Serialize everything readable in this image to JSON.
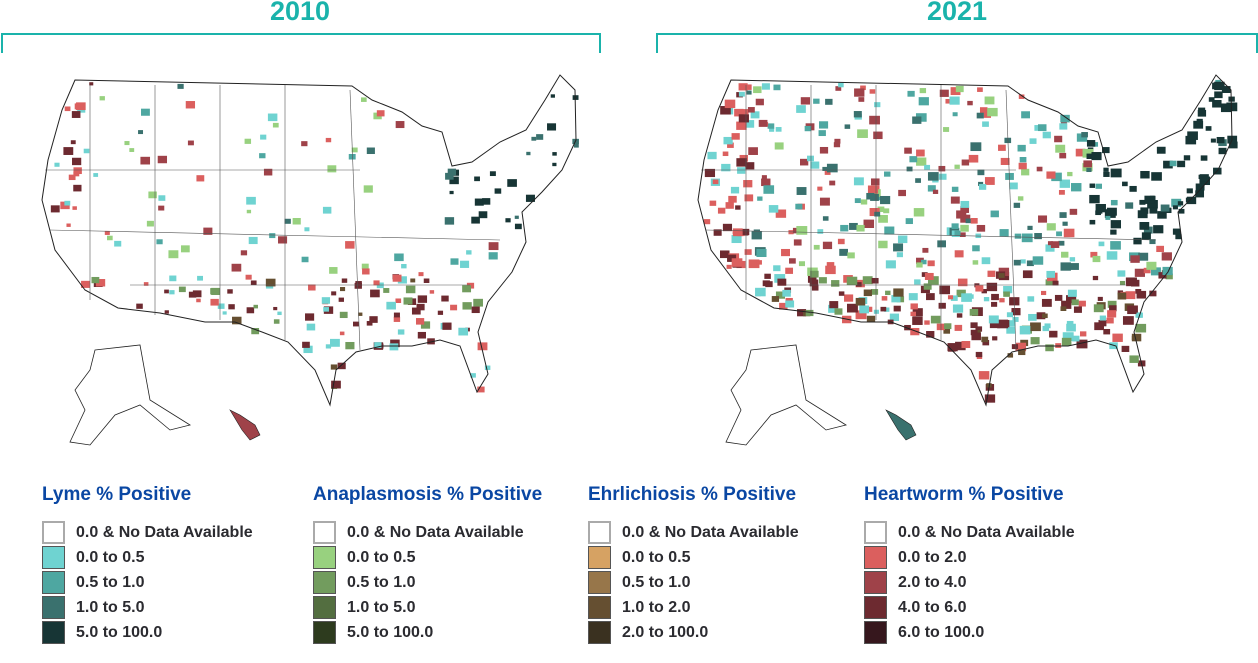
{
  "maps": [
    {
      "year": "2010"
    },
    {
      "year": "2021"
    }
  ],
  "legends": [
    {
      "title": "Lyme % Positive",
      "items": [
        {
          "label": "0.0 & No Data Available",
          "color": "#ffffff"
        },
        {
          "label": "0.0 to 0.5",
          "color": "#6fd3d1"
        },
        {
          "label": "0.5 to 1.0",
          "color": "#4ea7a1"
        },
        {
          "label": "1.0 to 5.0",
          "color": "#3a716e"
        },
        {
          "label": "5.0 to 100.0",
          "color": "#173535"
        }
      ]
    },
    {
      "title": "Anaplasmosis % Positive",
      "items": [
        {
          "label": "0.0 & No Data Available",
          "color": "#ffffff"
        },
        {
          "label": "0.0 to 0.5",
          "color": "#98d17f"
        },
        {
          "label": "0.5 to 1.0",
          "color": "#729c5e"
        },
        {
          "label": "1.0 to 5.0",
          "color": "#536e40"
        },
        {
          "label": "5.0 to 100.0",
          "color": "#2d3b1e"
        }
      ]
    },
    {
      "title": "Ehrlichiosis % Positive",
      "items": [
        {
          "label": "0.0 & No Data Available",
          "color": "#ffffff"
        },
        {
          "label": "0.0 to 0.5",
          "color": "#d6a263"
        },
        {
          "label": "0.5 to 1.0",
          "color": "#97764a"
        },
        {
          "label": "1.0 to 2.0",
          "color": "#654f31"
        },
        {
          "label": "2.0 to 100.0",
          "color": "#3a3120"
        }
      ]
    },
    {
      "title": "Heartworm % Positive",
      "items": [
        {
          "label": "0.0 & No Data Available",
          "color": "#ffffff"
        },
        {
          "label": "0.0 to 2.0",
          "color": "#db5f5e"
        },
        {
          "label": "2.0 to 4.0",
          "color": "#9f4249"
        },
        {
          "label": "4.0 to 6.0",
          "color": "#6d2a30"
        },
        {
          "label": "6.0 to 100.0",
          "color": "#36171d"
        }
      ]
    }
  ]
}
